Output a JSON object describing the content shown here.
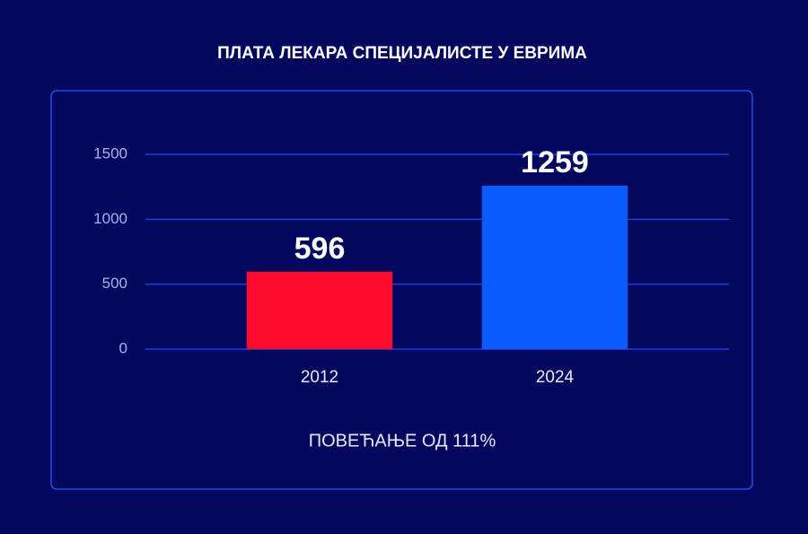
{
  "chart_data": {
    "type": "bar",
    "title": "ПЛАТА ЛЕКАРА СПЕЦИЈАЛИСТЕ У ЕВРИМА",
    "categories": [
      "2012",
      "2024"
    ],
    "values": [
      596,
      1259
    ],
    "colors": [
      "#ff0a2c",
      "#0a5cff"
    ],
    "ylim": [
      0,
      1500
    ],
    "yticks": [
      0,
      500,
      1000,
      1500
    ],
    "grid": true,
    "annotation": "ПОВЕЋАЊЕ ОД 111%"
  }
}
